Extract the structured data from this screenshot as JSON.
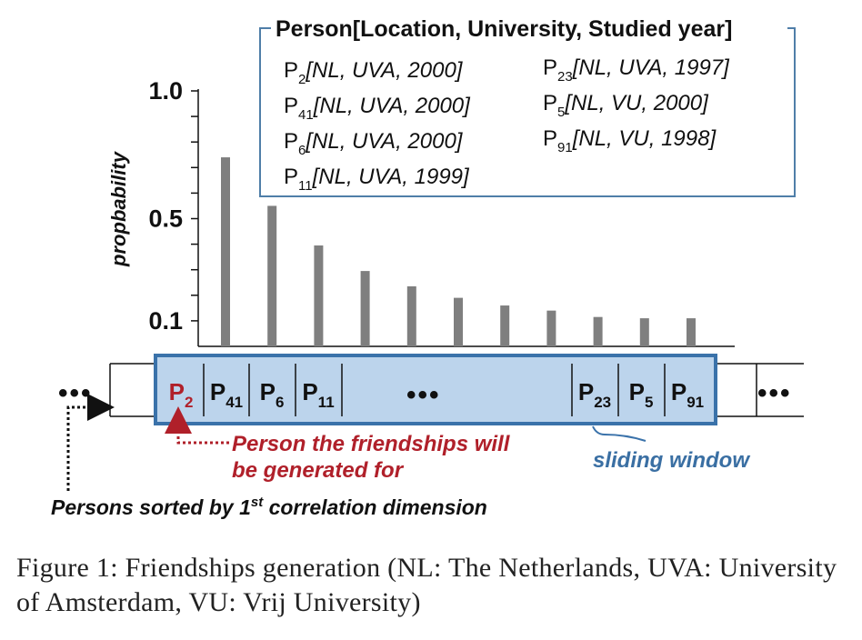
{
  "chart_data": {
    "type": "bar",
    "ylabel": "propbability",
    "yticks": [
      {
        "value": 0.1,
        "label": "0.1"
      },
      {
        "value": 0.5,
        "label": "0.5"
      },
      {
        "value": 1.0,
        "label": "1.0"
      }
    ],
    "ylim": [
      0,
      1.0
    ],
    "values": [
      0.74,
      0.55,
      0.395,
      0.295,
      0.235,
      0.19,
      0.16,
      0.14,
      0.115,
      0.11,
      0.11
    ],
    "bar_color": "#7f7f7f"
  },
  "legend": {
    "title": "Person[Location, University, Studied year]",
    "left_column": [
      {
        "p": "P",
        "sub": "2",
        "attrs": "[NL, UVA, 2000]"
      },
      {
        "p": "P",
        "sub": "41",
        "attrs": "[NL, UVA, 2000]"
      },
      {
        "p": "P",
        "sub": "6",
        "attrs": "[NL, UVA, 2000]"
      },
      {
        "p": "P",
        "sub": "11",
        "attrs": "[NL, UVA, 1999]"
      }
    ],
    "right_column": [
      {
        "p": "P",
        "sub": "23",
        "attrs": "[NL, UVA, 1997]"
      },
      {
        "p": "P",
        "sub": "5",
        "attrs": "[NL, VU, 2000]"
      },
      {
        "p": "P",
        "sub": "91",
        "attrs": "[NL, VU, 1998]"
      }
    ]
  },
  "row": {
    "left_dots": "•••",
    "right_dots": "•••",
    "middle_dots": "•••",
    "cells": [
      {
        "p": "P",
        "sub": "2",
        "highlight": true
      },
      {
        "p": "P",
        "sub": "41"
      },
      {
        "p": "P",
        "sub": "6"
      },
      {
        "p": "P",
        "sub": "11"
      },
      {
        "p": "P",
        "sub": "23"
      },
      {
        "p": "P",
        "sub": "5"
      },
      {
        "p": "P",
        "sub": "91"
      }
    ]
  },
  "annotations": {
    "red_line1": "Person the friendships will",
    "red_line2": "be generated for",
    "sliding_window": "sliding window",
    "sorted_pre": "Persons sorted by 1",
    "sorted_sup": "st",
    "sorted_post": " correlation dimension"
  },
  "caption": "Figure 1:  Friendships generation (NL: The Netherlands, UVA: University of Amsterdam, VU: Vrij University)",
  "colors": {
    "window_fill": "#bcd4ec",
    "window_border": "#3a72aa",
    "legend_border": "#4f7ea8",
    "red": "#b0202a",
    "blue_text": "#3a6fa3"
  }
}
